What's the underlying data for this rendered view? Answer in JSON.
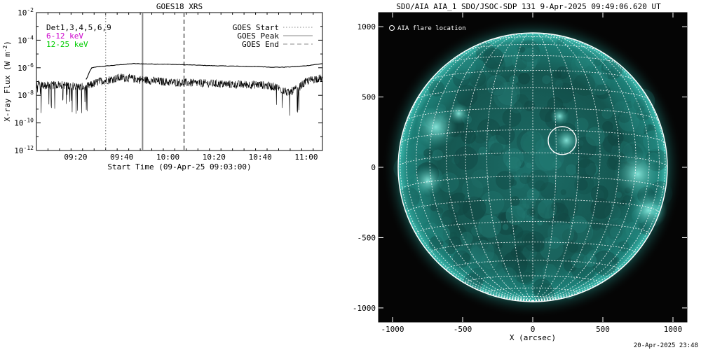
{
  "chart_data": [
    {
      "type": "line",
      "title": "GOES18 XRS",
      "xlabel": "Start Time (09-Apr-25 09:03:00)",
      "ylabel": "X-ray Flux (W m",
      "ylabel_sup": "-2",
      "ylabel_close": ")",
      "y_scale": "log",
      "ylim": [
        1e-12,
        0.01
      ],
      "xlim": [
        "09:03",
        "11:07"
      ],
      "x_ticks": [
        "09:20",
        "09:40",
        "10:00",
        "10:20",
        "10:40",
        "11:00"
      ],
      "y_ticks": [
        {
          "base": "10",
          "exp": "-12",
          "value": 1e-12
        },
        {
          "base": "10",
          "exp": "-10",
          "value": 1e-10
        },
        {
          "base": "10",
          "exp": "-8",
          "value": 1e-08
        },
        {
          "base": "10",
          "exp": "-6",
          "value": 1e-06
        },
        {
          "base": "10",
          "exp": "-4",
          "value": 0.0001
        },
        {
          "base": "10",
          "exp": "-2",
          "value": 0.01
        }
      ],
      "top_left_labels": [
        {
          "text": "Det1,3,4,5,6,9",
          "color": "#000000"
        },
        {
          "text": "6-12 keV",
          "color": "#cc00cc"
        },
        {
          "text": "12-25 keV",
          "color": "#00cc00"
        }
      ],
      "legend": [
        {
          "label": "GOES Start",
          "style": "dotted"
        },
        {
          "label": "GOES Peak",
          "style": "solid"
        },
        {
          "label": "GOES End",
          "style": "dashed"
        }
      ],
      "legend_position": "top-right",
      "markers": {
        "start": "09:33",
        "peak": "09:49",
        "end": "10:07"
      },
      "series": [
        {
          "x": [
            "09:03",
            "09:10",
            "09:18",
            "09:24",
            "09:25",
            "09:26",
            "09:27",
            "09:30",
            "09:40",
            "09:45",
            "09:50",
            "10:00",
            "10:10",
            "10:20",
            "10:30",
            "10:40",
            "10:45",
            "10:50",
            "10:55",
            "11:00",
            "11:07"
          ],
          "values": [
            null,
            null,
            null,
            1e-07,
            2e-07,
            5e-07,
            1e-06,
            1.2e-06,
            1.7e-06,
            2e-06,
            1.9e-06,
            1.8e-06,
            1.6e-06,
            1.4e-06,
            1.3e-06,
            1.2e-06,
            1.1e-06,
            1.1e-06,
            1.2e-06,
            1.4e-06,
            2e-06
          ]
        },
        {
          "x": [
            "09:03",
            "09:08",
            "09:13",
            "09:18",
            "09:23",
            "09:26",
            "09:30",
            "09:35",
            "09:40",
            "09:45",
            "09:50",
            "09:55",
            "10:00",
            "10:10",
            "10:20",
            "10:30",
            "10:40",
            "10:47",
            "10:52",
            "10:56",
            "11:00",
            "11:04",
            "11:07"
          ],
          "values": [
            6e-08,
            5e-08,
            6e-08,
            5e-08,
            4e-08,
            5e-08,
            1e-07,
            1.4e-07,
            2e-07,
            1.6e-07,
            1.3e-07,
            1.1e-07,
            9e-08,
            8e-08,
            7e-08,
            6e-08,
            6e-08,
            4e-08,
            1.5e-08,
            3e-08,
            1e-07,
            1.6e-07,
            1.7e-07
          ]
        }
      ]
    },
    {
      "type": "heatmap",
      "title": "SDO/AIA AIA_1 SDO/JSOC-SDP 131  9-Apr-2025 09:49:06.620 UT",
      "xlabel": "X (arcsec)",
      "xlim": [
        -1100,
        1100
      ],
      "ylim": [
        -1100,
        1100
      ],
      "x_ticks": [
        "-1000",
        "-500",
        "0",
        "500",
        "1000"
      ],
      "x_tick_values": [
        -1000,
        -500,
        0,
        500,
        1000
      ],
      "y_ticks": [
        "1000",
        "500",
        "0",
        "-500",
        "-1000"
      ],
      "y_tick_values": [
        1000,
        500,
        0,
        -500,
        -1000
      ],
      "legend": [
        {
          "label": "AIA flare location",
          "marker": "circle"
        }
      ],
      "legend_position": "top-left",
      "flare_location": {
        "x": 210,
        "y": 190
      },
      "solar_radius": 960,
      "grid": true,
      "colors": {
        "disk_inner": "#1a6a64",
        "disk_outer": "#0b2d2b",
        "bright": "#6fe0d4",
        "background": "#050505"
      }
    }
  ],
  "footer": {
    "timestamp": "20-Apr-2025 23:48"
  }
}
